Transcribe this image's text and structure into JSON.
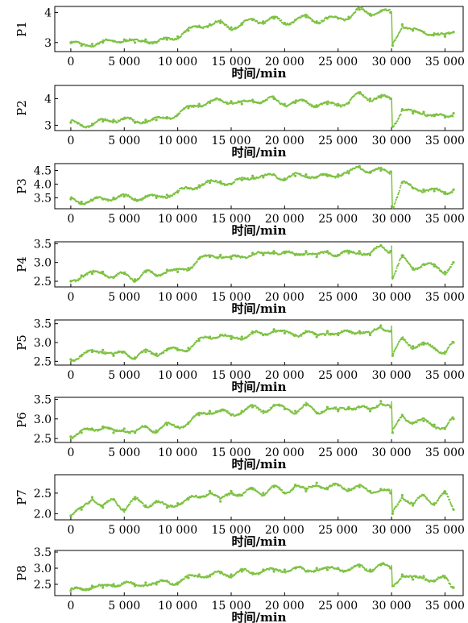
{
  "figure": {
    "xlabel": "时间/min",
    "x_tick_labels": [
      "0",
      "5 000",
      "10 000",
      "15 000",
      "20 000",
      "25 000",
      "30 000",
      "35 000"
    ],
    "x_tick_values": [
      0,
      5000,
      10000,
      15000,
      20000,
      25000,
      30000,
      35000
    ],
    "xlim": [
      -1500,
      36700
    ],
    "line_color": "#7dc242"
  },
  "chart_data": [
    {
      "type": "scatter",
      "ylabel": "P1",
      "ylim": [
        2.7,
        4.2
      ],
      "yticks": [
        3,
        4
      ],
      "ytick_labels": [
        "3",
        "4"
      ],
      "x": [
        0,
        1000,
        2000,
        3000,
        4000,
        5000,
        6000,
        7000,
        8000,
        9000,
        10000,
        11000,
        12000,
        13000,
        14000,
        15000,
        16000,
        17000,
        18000,
        19000,
        20000,
        21000,
        22000,
        23000,
        24000,
        25000,
        26000,
        27000,
        28000,
        29000,
        29900,
        30100,
        31000,
        32000,
        33000,
        34000,
        35000,
        35800
      ],
      "values": [
        3.0,
        2.9,
        2.95,
        3.0,
        3.05,
        3.1,
        3.0,
        3.1,
        3.0,
        3.1,
        3.2,
        3.4,
        3.55,
        3.6,
        3.65,
        3.5,
        3.6,
        3.75,
        3.7,
        3.8,
        3.65,
        3.75,
        3.85,
        3.7,
        3.8,
        3.8,
        3.85,
        4.1,
        3.95,
        4.05,
        4.0,
        2.9,
        3.6,
        3.4,
        3.35,
        3.3,
        3.2,
        3.35
      ]
    },
    {
      "type": "scatter",
      "ylabel": "P2",
      "ylim": [
        2.8,
        4.5
      ],
      "yticks": [
        3,
        4
      ],
      "ytick_labels": [
        "3",
        "4"
      ],
      "x": [
        0,
        1000,
        2000,
        3000,
        4000,
        5000,
        6000,
        7000,
        8000,
        9000,
        10000,
        11000,
        12000,
        13000,
        14000,
        15000,
        16000,
        17000,
        18000,
        19000,
        20000,
        21000,
        22000,
        23000,
        24000,
        25000,
        26000,
        27000,
        28000,
        29000,
        29900,
        30100,
        31000,
        32000,
        33000,
        34000,
        35000,
        35800
      ],
      "values": [
        3.1,
        3.0,
        3.05,
        3.15,
        3.2,
        3.25,
        3.1,
        3.2,
        3.2,
        3.3,
        3.4,
        3.65,
        3.8,
        3.85,
        3.95,
        3.9,
        3.8,
        3.95,
        3.9,
        4.0,
        3.8,
        3.85,
        3.9,
        3.75,
        3.8,
        3.8,
        3.85,
        4.2,
        4.0,
        4.05,
        4.0,
        2.95,
        3.6,
        3.45,
        3.5,
        3.35,
        3.3,
        3.45
      ]
    },
    {
      "type": "scatter",
      "ylabel": "P3",
      "ylim": [
        3.1,
        4.75
      ],
      "yticks": [
        3.5,
        4.0,
        4.5
      ],
      "ytick_labels": [
        "3.5",
        "4.0",
        "4.5"
      ],
      "x": [
        0,
        1000,
        2000,
        3000,
        4000,
        5000,
        6000,
        7000,
        8000,
        9000,
        10000,
        11000,
        12000,
        13000,
        14000,
        15000,
        16000,
        17000,
        18000,
        19000,
        20000,
        21000,
        22000,
        23000,
        24000,
        25000,
        26000,
        27000,
        28000,
        29000,
        29900,
        30100,
        31000,
        32000,
        33000,
        34000,
        35000,
        35800
      ],
      "values": [
        3.45,
        3.35,
        3.4,
        3.45,
        3.5,
        3.55,
        3.45,
        3.55,
        3.5,
        3.6,
        3.7,
        3.85,
        3.95,
        4.05,
        4.1,
        4.0,
        4.15,
        4.3,
        4.25,
        4.35,
        4.2,
        4.3,
        4.35,
        4.25,
        4.3,
        4.35,
        4.4,
        4.65,
        4.45,
        4.5,
        4.45,
        3.15,
        4.05,
        3.85,
        3.8,
        3.75,
        3.7,
        3.8
      ]
    },
    {
      "type": "scatter",
      "ylabel": "P4",
      "ylim": [
        2.35,
        3.55
      ],
      "yticks": [
        2.5,
        3.0,
        3.5
      ],
      "ytick_labels": [
        "2.5",
        "3.0",
        "3.5"
      ],
      "x": [
        0,
        1000,
        2000,
        3000,
        4000,
        5000,
        6000,
        7000,
        8000,
        9000,
        10000,
        11000,
        12000,
        13000,
        14000,
        15000,
        16000,
        17000,
        18000,
        19000,
        20000,
        21000,
        22000,
        23000,
        24000,
        25000,
        26000,
        27000,
        28000,
        29000,
        29900,
        30100,
        31000,
        32000,
        33000,
        34000,
        35000,
        35800
      ],
      "values": [
        2.5,
        2.65,
        2.7,
        2.75,
        2.6,
        2.7,
        2.55,
        2.75,
        2.65,
        2.8,
        2.75,
        2.85,
        3.1,
        3.15,
        3.2,
        3.1,
        3.15,
        3.25,
        3.2,
        3.3,
        3.25,
        3.2,
        3.3,
        3.15,
        3.3,
        3.2,
        3.25,
        3.3,
        3.2,
        3.45,
        3.3,
        2.6,
        3.15,
        2.85,
        2.95,
        2.9,
        2.75,
        3.0
      ]
    },
    {
      "type": "scatter",
      "ylabel": "P5",
      "ylim": [
        2.4,
        3.6
      ],
      "yticks": [
        2.5,
        3.0,
        3.5
      ],
      "ytick_labels": [
        "2.5",
        "3.0",
        "3.5"
      ],
      "x": [
        0,
        1000,
        2000,
        3000,
        4000,
        5000,
        6000,
        7000,
        8000,
        9000,
        10000,
        11000,
        12000,
        13000,
        14000,
        15000,
        16000,
        17000,
        18000,
        19000,
        20000,
        21000,
        22000,
        23000,
        24000,
        25000,
        26000,
        27000,
        28000,
        29000,
        29900,
        30100,
        31000,
        32000,
        33000,
        34000,
        35000,
        35800
      ],
      "values": [
        2.55,
        2.65,
        2.75,
        2.8,
        2.65,
        2.75,
        2.6,
        2.75,
        2.7,
        2.8,
        2.8,
        2.85,
        3.05,
        3.15,
        3.2,
        3.1,
        3.15,
        3.25,
        3.2,
        3.35,
        3.25,
        3.2,
        3.3,
        3.15,
        3.3,
        3.2,
        3.3,
        3.3,
        3.2,
        3.45,
        3.3,
        2.65,
        3.1,
        2.9,
        2.95,
        2.85,
        2.75,
        3.0
      ]
    },
    {
      "type": "scatter",
      "ylabel": "P6",
      "ylim": [
        2.4,
        3.55
      ],
      "yticks": [
        2.5,
        3.0,
        3.5
      ],
      "ytick_labels": [
        "2.5",
        "3.0",
        "3.5"
      ],
      "x": [
        0,
        1000,
        2000,
        3000,
        4000,
        5000,
        6000,
        7000,
        8000,
        9000,
        10000,
        11000,
        12000,
        13000,
        14000,
        15000,
        16000,
        17000,
        18000,
        19000,
        20000,
        21000,
        22000,
        23000,
        24000,
        25000,
        26000,
        27000,
        28000,
        29000,
        29900,
        30100,
        31000,
        32000,
        33000,
        34000,
        35000,
        35800
      ],
      "values": [
        2.55,
        2.65,
        2.75,
        2.8,
        2.65,
        2.75,
        2.65,
        2.8,
        2.7,
        2.85,
        2.8,
        2.9,
        3.1,
        3.2,
        3.2,
        3.1,
        3.2,
        3.3,
        3.2,
        3.35,
        3.25,
        3.2,
        3.35,
        3.15,
        3.3,
        3.2,
        3.3,
        3.3,
        3.2,
        3.45,
        3.3,
        2.65,
        3.1,
        2.9,
        2.95,
        2.85,
        2.75,
        3.0
      ]
    },
    {
      "type": "scatter",
      "ylabel": "P7",
      "ylim": [
        1.85,
        2.95
      ],
      "yticks": [
        2.0,
        2.5
      ],
      "ytick_labels": [
        "2.0",
        "2.5"
      ],
      "x": [
        0,
        1000,
        2000,
        3000,
        4000,
        5000,
        6000,
        7000,
        8000,
        9000,
        10000,
        11000,
        12000,
        13000,
        14000,
        15000,
        16000,
        17000,
        18000,
        19000,
        20000,
        21000,
        22000,
        23000,
        24000,
        25000,
        26000,
        27000,
        28000,
        29000,
        29900,
        30100,
        31000,
        32000,
        33000,
        34000,
        35000,
        35800
      ],
      "values": [
        1.95,
        2.1,
        2.4,
        2.15,
        2.35,
        2.1,
        2.35,
        2.2,
        2.3,
        2.15,
        2.25,
        2.35,
        2.4,
        2.55,
        2.3,
        2.55,
        2.45,
        2.6,
        2.5,
        2.65,
        2.5,
        2.7,
        2.55,
        2.75,
        2.6,
        2.7,
        2.6,
        2.65,
        2.55,
        2.6,
        2.5,
        2.0,
        2.45,
        2.2,
        2.45,
        2.25,
        2.5,
        2.1
      ]
    },
    {
      "type": "scatter",
      "ylabel": "P8",
      "ylim": [
        2.15,
        3.55
      ],
      "yticks": [
        2.5,
        3.0,
        3.5
      ],
      "ytick_labels": [
        "2.5",
        "3.0",
        "3.5"
      ],
      "x": [
        0,
        1000,
        2000,
        3000,
        4000,
        5000,
        6000,
        7000,
        8000,
        9000,
        10000,
        11000,
        12000,
        13000,
        14000,
        15000,
        16000,
        17000,
        18000,
        19000,
        20000,
        21000,
        22000,
        23000,
        24000,
        25000,
        26000,
        27000,
        28000,
        29000,
        29900,
        30100,
        31000,
        32000,
        33000,
        34000,
        35000,
        35800
      ],
      "values": [
        2.3,
        2.35,
        2.45,
        2.4,
        2.5,
        2.55,
        2.45,
        2.55,
        2.5,
        2.6,
        2.55,
        2.7,
        2.8,
        2.75,
        2.85,
        2.8,
        2.9,
        2.85,
        2.95,
        2.9,
        2.95,
        3.0,
        2.9,
        3.0,
        2.95,
        3.0,
        2.95,
        3.05,
        2.95,
        3.1,
        3.0,
        2.45,
        2.8,
        2.65,
        2.75,
        2.6,
        2.7,
        2.4
      ]
    }
  ]
}
